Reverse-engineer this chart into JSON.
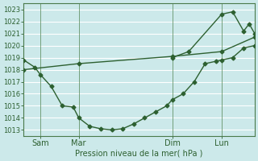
{
  "xlabel": "Pression niveau de la mer( hPa )",
  "ylim": [
    1012.5,
    1023.5
  ],
  "xlim": [
    0,
    21
  ],
  "yticks": [
    1013,
    1014,
    1015,
    1016,
    1017,
    1018,
    1019,
    1020,
    1021,
    1022,
    1023
  ],
  "xtick_positions": [
    1.5,
    5.0,
    13.5,
    18.0
  ],
  "xtick_labels": [
    "Sam",
    "Mar",
    "Dim",
    "Lun"
  ],
  "vline_positions": [
    1.5,
    5.0,
    13.5,
    18.0
  ],
  "bg_color": "#cce9ea",
  "grid_color": "#ffffff",
  "line_color": "#2d6030",
  "series1_x": [
    0.0,
    1.0,
    1.5,
    2.5,
    3.5,
    4.5,
    5.0,
    6.0,
    7.0,
    8.0,
    9.0,
    10.0,
    11.0,
    12.0,
    13.0,
    13.5,
    14.5,
    15.5,
    16.5,
    17.5,
    18.0,
    19.0,
    20.0,
    21.0
  ],
  "series1_y": [
    1018.8,
    1018.2,
    1017.6,
    1016.6,
    1015.0,
    1014.9,
    1014.0,
    1013.3,
    1013.1,
    1013.0,
    1013.1,
    1013.5,
    1014.0,
    1014.5,
    1015.0,
    1015.5,
    1016.0,
    1017.0,
    1018.5,
    1018.7,
    1018.8,
    1019.0,
    1019.8,
    1020.0
  ],
  "series2_x": [
    0.0,
    5.0,
    13.5,
    18.0,
    21.0
  ],
  "series2_y": [
    1018.0,
    1018.5,
    1019.1,
    1019.5,
    1020.7
  ],
  "series3_x": [
    13.5,
    15.0,
    18.0,
    19.0,
    20.0,
    20.5,
    21.0
  ],
  "series3_y": [
    1019.0,
    1019.5,
    1022.6,
    1022.8,
    1021.2,
    1021.8,
    1021.0
  ],
  "marker": "D",
  "marker_size": 2.5,
  "linewidth": 1.0,
  "tick_fontsize": 6,
  "xlabel_fontsize": 7
}
